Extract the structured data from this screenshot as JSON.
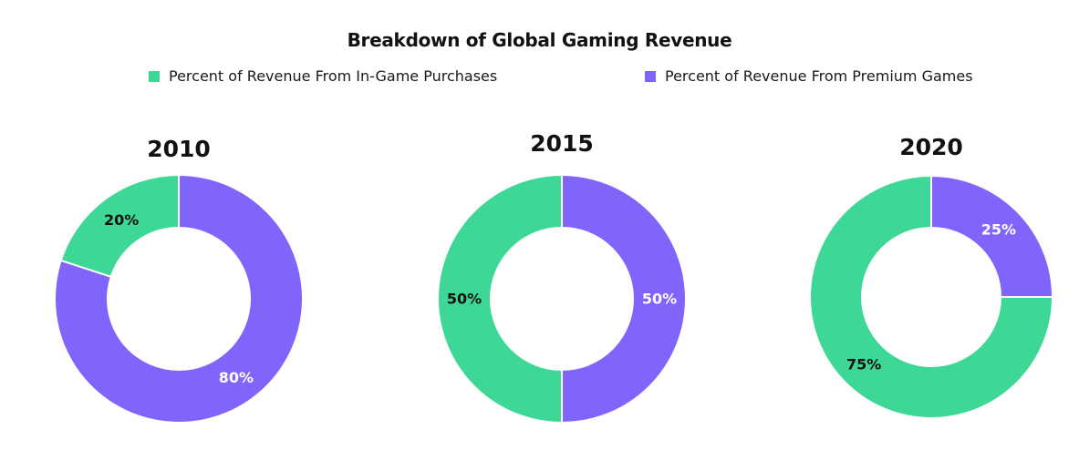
{
  "chart_data": {
    "type": "pie",
    "title": "Breakdown of Global Gaming Revenue",
    "series_names": [
      "Percent of Revenue From In-Game Purchases",
      "Percent of Revenue From Premium Games"
    ],
    "colors": {
      "in_game": "#3dd895",
      "premium": "#8064fb"
    },
    "label_colors": {
      "in_game": "#111111",
      "premium": "#ffffff"
    },
    "charts": [
      {
        "year": "2010",
        "in_game": 20,
        "premium": 80,
        "in_game_label": "20%",
        "premium_label": "80%"
      },
      {
        "year": "2015",
        "in_game": 50,
        "premium": 50,
        "in_game_label": "50%",
        "premium_label": "50%"
      },
      {
        "year": "2020",
        "in_game": 75,
        "premium": 25,
        "in_game_label": "75%",
        "premium_label": "25%"
      }
    ]
  }
}
